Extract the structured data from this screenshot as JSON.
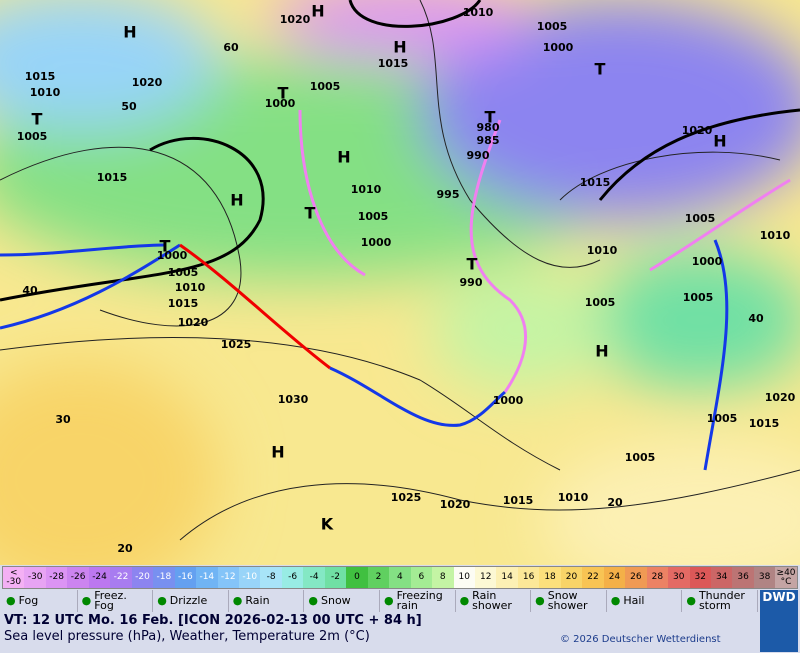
{
  "map": {
    "labels": [
      "1020",
      "H",
      "1010",
      "1005",
      "1000",
      "H",
      "1015",
      "H",
      "T",
      "60",
      "1015",
      "1010",
      "T",
      "1005",
      "1020",
      "50",
      "1000",
      "1005",
      "T",
      "T",
      "980",
      "985",
      "990",
      "H",
      "1020",
      "H",
      "1015",
      "H",
      "1010",
      "995",
      "1015",
      "T",
      "1005",
      "1005",
      "1010",
      "1000",
      "T",
      "1000",
      "1010",
      "1000",
      "T",
      "990",
      "1005",
      "1010",
      "1015",
      "40",
      "1005",
      "1005",
      "1020",
      "40",
      "1025",
      "H",
      "1030",
      "1000",
      "1005",
      "1015",
      "1020",
      "30",
      "H",
      "1005",
      "1025",
      "1020",
      "1015",
      "1010",
      "20",
      "20",
      "K"
    ]
  },
  "colorbar": {
    "labels": [
      "<\n-30",
      "-30",
      "-28",
      "-26",
      "-24",
      "-22",
      "-20",
      "-18",
      "-16",
      "-14",
      "-12",
      "-10",
      "-8",
      "-6",
      "-4",
      "-2",
      "0",
      "2",
      "4",
      "6",
      "8",
      "10",
      "12",
      "14",
      "16",
      "18",
      "20",
      "22",
      "24",
      "26",
      "28",
      "30",
      "32",
      "34",
      "36",
      "38",
      "≥40\n°C"
    ],
    "colors": [
      "#f4b0f4",
      "#e8a4f4",
      "#dc94f4",
      "#cc84f0",
      "#bc78f0",
      "#a87cf0",
      "#8c84f0",
      "#7890f0",
      "#64a0f0",
      "#70b4f4",
      "#84c4f8",
      "#98d4f8",
      "#a8e4f8",
      "#98ece4",
      "#84e8c4",
      "#70e0a4",
      "#40c040",
      "#60d060",
      "#84e084",
      "#a4ec94",
      "#c4f4a4",
      "#fcfcf4",
      "#fcf8d4",
      "#fcf0b4",
      "#fce898",
      "#fce07c",
      "#f8d468",
      "#f8c454",
      "#f4b048",
      "#f09a54",
      "#ec8264",
      "#e46a64",
      "#dc5858",
      "#cc6666",
      "#bc7474",
      "#b08484",
      "#c4a4a4"
    ]
  },
  "legend": [
    "Fog",
    "Freez.\nFog",
    "Drizzle",
    "Rain",
    "Snow",
    "Freezing\nrain",
    "Rain\nshower",
    "Snow\nshower",
    "Hail",
    "Thunder\nstorm"
  ],
  "logo": "DWD",
  "footer": {
    "valid_time": "VT: 12 UTC Mo.  16 Feb. [ICON 2026-02-13  00 UTC + 84 h]",
    "description": "Sea level pressure (hPa), Weather, Temperature 2m (°C)",
    "copyright": "© 2026 Deutscher Wetterdienst"
  }
}
